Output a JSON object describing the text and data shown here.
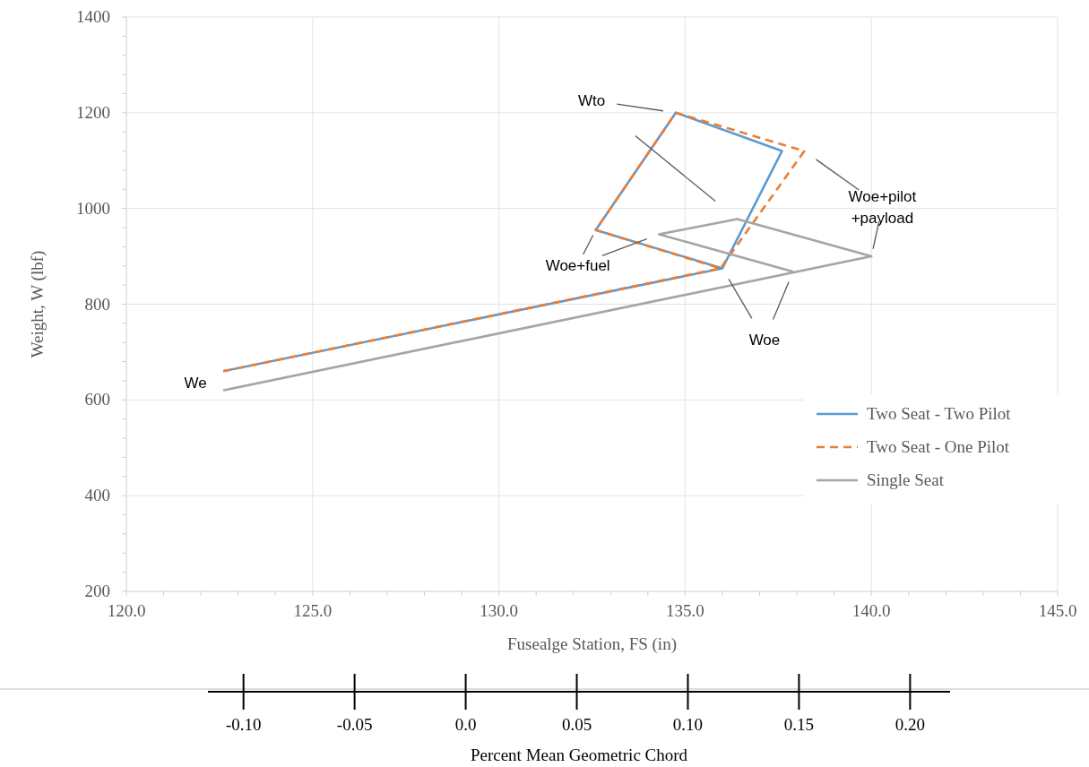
{
  "chart_data": {
    "type": "line",
    "xlabel": "Fusealge Station, FS (in)",
    "ylabel": "Weight, W (lbf)",
    "x2label": "Percent Mean Geometric Chord",
    "xlim": [
      120,
      145
    ],
    "xticks": [
      {
        "value": 120,
        "label": "120.0"
      },
      {
        "value": 121,
        "label": null
      },
      {
        "value": 122,
        "label": null
      },
      {
        "value": 123,
        "label": null
      },
      {
        "value": 124,
        "label": null
      },
      {
        "value": 125,
        "label": "125.0"
      },
      {
        "value": 126,
        "label": null
      },
      {
        "value": 127,
        "label": null
      },
      {
        "value": 128,
        "label": null
      },
      {
        "value": 129,
        "label": null
      },
      {
        "value": 130,
        "label": "130.0"
      },
      {
        "value": 131,
        "label": null
      },
      {
        "value": 132,
        "label": null
      },
      {
        "value": 133,
        "label": null
      },
      {
        "value": 134,
        "label": null
      },
      {
        "value": 135,
        "label": "135.0"
      },
      {
        "value": 136,
        "label": null
      },
      {
        "value": 137,
        "label": null
      },
      {
        "value": 138,
        "label": null
      },
      {
        "value": 139,
        "label": null
      },
      {
        "value": 140,
        "label": "140.0"
      },
      {
        "value": 141,
        "label": null
      },
      {
        "value": 142,
        "label": null
      },
      {
        "value": 143,
        "label": null
      },
      {
        "value": 144,
        "label": null
      },
      {
        "value": 145,
        "label": "145.0"
      }
    ],
    "ylim": [
      200,
      1400
    ],
    "yticks": [
      200,
      {
        "value": 240,
        "label": null
      },
      {
        "value": 280,
        "label": null
      },
      {
        "value": 320,
        "label": null
      },
      {
        "value": 360,
        "label": null
      },
      400,
      {
        "value": 440,
        "label": null
      },
      {
        "value": 480,
        "label": null
      },
      {
        "value": 520,
        "label": null
      },
      {
        "value": 560,
        "label": null
      },
      600,
      {
        "value": 640,
        "label": null
      },
      {
        "value": 680,
        "label": null
      },
      {
        "value": 720,
        "label": null
      },
      {
        "value": 760,
        "label": null
      },
      800,
      {
        "value": 840,
        "label": null
      },
      {
        "value": 880,
        "label": null
      },
      {
        "value": 920,
        "label": null
      },
      {
        "value": 960,
        "label": null
      },
      1000,
      {
        "value": 1040,
        "label": null
      },
      {
        "value": 1080,
        "label": null
      },
      {
        "value": 1120,
        "label": null
      },
      {
        "value": 1160,
        "label": null
      },
      1200,
      {
        "value": 1240,
        "label": null
      },
      {
        "value": 1280,
        "label": null
      },
      {
        "value": 1320,
        "label": null
      },
      {
        "value": 1360,
        "label": null
      },
      1400
    ],
    "x2lim": [
      -0.116,
      0.218
    ],
    "x2ticks": [
      {
        "value": -0.1,
        "label": "-0.10"
      },
      {
        "value": -0.05,
        "label": "-0.05"
      },
      {
        "value": 0,
        "label": "0.0"
      },
      {
        "value": 0.05,
        "label": "0.05"
      },
      {
        "value": 0.1,
        "label": "0.10"
      },
      {
        "value": 0.15,
        "label": "0.15"
      },
      {
        "value": 0.2,
        "label": "0.20"
      }
    ],
    "grid": true,
    "legend": "right",
    "marker": "none",
    "series": [
      {
        "name": "Two Seat - Two Pilot",
        "color": "#5b9bd5",
        "line_style": "solid",
        "x": [
          122.6,
          136.0,
          132.6,
          134.75,
          137.6,
          136.0
        ],
        "values": [
          660,
          875,
          955,
          1200,
          1120,
          875
        ]
      },
      {
        "name": "Two Seat - One Pilot",
        "color": "#ed7d31",
        "line_style": "dashed",
        "x": [
          122.6,
          135.95,
          132.6,
          134.75,
          138.2,
          135.95
        ],
        "values": [
          660,
          875,
          955,
          1200,
          1120,
          875
        ]
      },
      {
        "name": "Single Seat",
        "color": "#a5a5a5",
        "line_style": "solid",
        "x": [
          122.6,
          140.0,
          136.4,
          134.3,
          137.9
        ],
        "values": [
          620,
          900,
          978,
          946,
          868
        ]
      }
    ],
    "annotations": [
      "Wto",
      "Woe+pilot\n+payload",
      "Woe+fuel",
      "Woe",
      "We"
    ]
  }
}
